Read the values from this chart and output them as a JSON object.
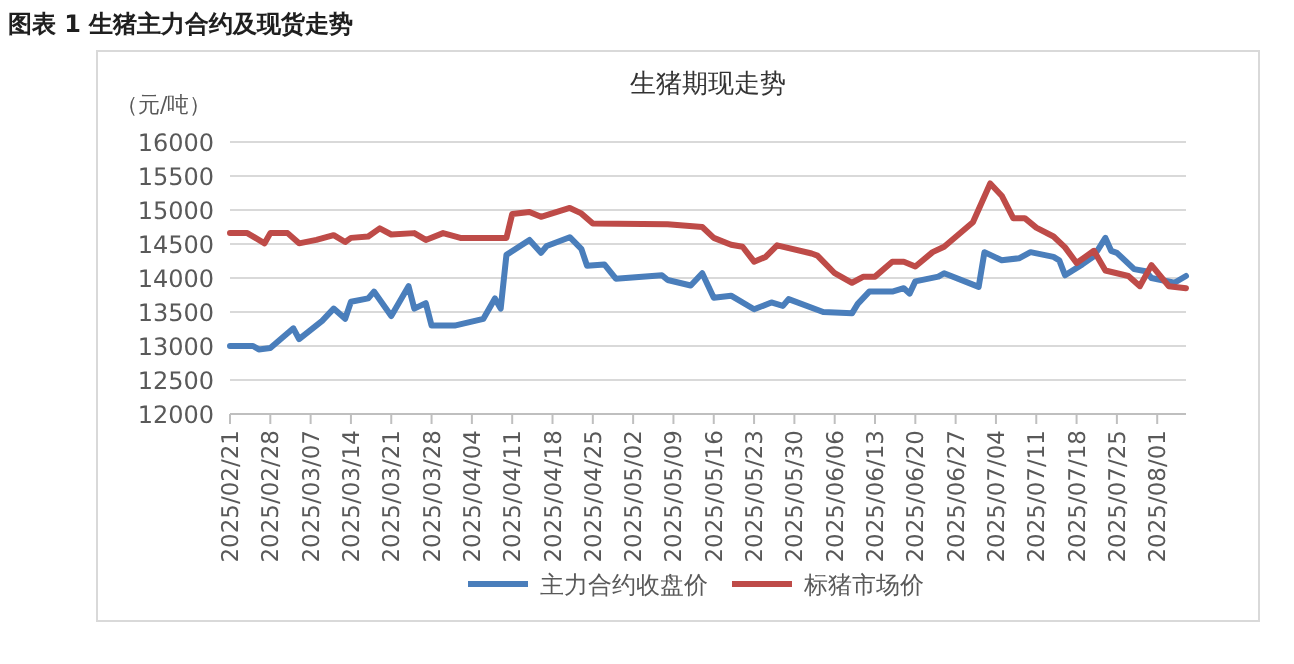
{
  "chart_data": {
    "type": "line",
    "title": "图表 1 生猪主力合约及现货走势",
    "subtitle": "生猪期现走势",
    "ylabel": "（元/吨）",
    "xlim": [
      "2025-02-21",
      "2025-08-06"
    ],
    "xticks": [
      {
        "value": "2025-02-21",
        "label": "2025/02/21"
      },
      {
        "value": "2025-02-28",
        "label": "2025/02/28"
      },
      {
        "value": "2025-03-07",
        "label": "2025/03/07"
      },
      {
        "value": "2025-03-14",
        "label": "2025/03/14"
      },
      {
        "value": "2025-03-21",
        "label": "2025/03/21"
      },
      {
        "value": "2025-03-28",
        "label": "2025/03/28"
      },
      {
        "value": "2025-04-04",
        "label": "2025/04/04"
      },
      {
        "value": "2025-04-11",
        "label": "2025/04/11"
      },
      {
        "value": "2025-04-18",
        "label": "2025/04/18"
      },
      {
        "value": "2025-04-25",
        "label": "2025/04/25"
      },
      {
        "value": "2025-05-02",
        "label": "2025/05/02"
      },
      {
        "value": "2025-05-09",
        "label": "2025/05/09"
      },
      {
        "value": "2025-05-16",
        "label": "2025/05/16"
      },
      {
        "value": "2025-05-23",
        "label": "2025/05/23"
      },
      {
        "value": "2025-05-30",
        "label": "2025/05/30"
      },
      {
        "value": "2025-06-06",
        "label": "2025/06/06"
      },
      {
        "value": "2025-06-13",
        "label": "2025/06/13"
      },
      {
        "value": "2025-06-20",
        "label": "2025/06/20"
      },
      {
        "value": "2025-06-27",
        "label": "2025/06/27"
      },
      {
        "value": "2025-07-04",
        "label": "2025/07/04"
      },
      {
        "value": "2025-07-11",
        "label": "2025/07/11"
      },
      {
        "value": "2025-07-18",
        "label": "2025/07/18"
      },
      {
        "value": "2025-07-25",
        "label": "2025/07/25"
      },
      {
        "value": "2025-08-01",
        "label": "2025/08/01"
      }
    ],
    "ylim": [
      12000,
      16000
    ],
    "yticks": [
      12000,
      12500,
      13000,
      13500,
      14000,
      14500,
      15000,
      15500,
      16000
    ],
    "grid": "y",
    "legend": "bottom",
    "marker": "none",
    "line_style": "solid",
    "series": [
      {
        "name": "主力合约收盘价",
        "color": "#4a7ebb",
        "x": [
          "2025-02-21",
          "2025-02-25",
          "2025-02-26",
          "2025-02-28",
          "2025-03-04",
          "2025-03-05",
          "2025-03-09",
          "2025-03-11",
          "2025-03-13",
          "2025-03-14",
          "2025-03-17",
          "2025-03-18",
          "2025-03-21",
          "2025-03-24",
          "2025-03-25",
          "2025-03-27",
          "2025-03-28",
          "2025-04-01",
          "2025-04-06",
          "2025-04-08",
          "2025-04-09",
          "2025-04-10",
          "2025-04-14",
          "2025-04-16",
          "2025-04-17",
          "2025-04-21",
          "2025-04-23",
          "2025-04-24",
          "2025-04-27",
          "2025-04-29",
          "2025-05-07",
          "2025-05-08",
          "2025-05-12",
          "2025-05-14",
          "2025-05-16",
          "2025-05-19",
          "2025-05-23",
          "2025-05-26",
          "2025-05-28",
          "2025-05-29",
          "2025-06-04",
          "2025-06-09",
          "2025-06-10",
          "2025-06-12",
          "2025-06-16",
          "2025-06-18",
          "2025-06-19",
          "2025-06-20",
          "2025-06-24",
          "2025-06-25",
          "2025-07-01",
          "2025-07-02",
          "2025-07-05",
          "2025-07-08",
          "2025-07-10",
          "2025-07-14",
          "2025-07-15",
          "2025-07-16",
          "2025-07-19",
          "2025-07-21",
          "2025-07-23",
          "2025-07-24",
          "2025-07-25",
          "2025-07-28",
          "2025-07-30",
          "2025-07-31",
          "2025-08-04",
          "2025-08-06"
        ],
        "values": [
          13000,
          13000,
          12950,
          12970,
          13260,
          13100,
          13370,
          13550,
          13400,
          13650,
          13700,
          13800,
          13440,
          13880,
          13550,
          13630,
          13300,
          13300,
          13400,
          13700,
          13550,
          14340,
          14560,
          14370,
          14470,
          14600,
          14430,
          14180,
          14200,
          13990,
          14040,
          13970,
          13890,
          14070,
          13710,
          13740,
          13540,
          13640,
          13590,
          13690,
          13500,
          13480,
          13620,
          13800,
          13800,
          13850,
          13770,
          13950,
          14020,
          14070,
          13870,
          14380,
          14260,
          14290,
          14380,
          14310,
          14260,
          14040,
          14200,
          14320,
          14590,
          14400,
          14370,
          14130,
          14100,
          14000,
          13930,
          14030
        ]
      },
      {
        "name": "标猪市场价",
        "color": "#be4b48",
        "x": [
          "2025-02-21",
          "2025-02-24",
          "2025-02-27",
          "2025-02-28",
          "2025-03-03",
          "2025-03-05",
          "2025-03-08",
          "2025-03-11",
          "2025-03-13",
          "2025-03-14",
          "2025-03-17",
          "2025-03-19",
          "2025-03-21",
          "2025-03-25",
          "2025-03-27",
          "2025-03-30",
          "2025-04-02",
          "2025-04-08",
          "2025-04-10",
          "2025-04-11",
          "2025-04-14",
          "2025-04-16",
          "2025-04-21",
          "2025-04-23",
          "2025-04-25",
          "2025-05-08",
          "2025-05-14",
          "2025-05-16",
          "2025-05-19",
          "2025-05-21",
          "2025-05-23",
          "2025-05-25",
          "2025-05-27",
          "2025-06-02",
          "2025-06-03",
          "2025-06-06",
          "2025-06-09",
          "2025-06-11",
          "2025-06-13",
          "2025-06-16",
          "2025-06-18",
          "2025-06-20",
          "2025-06-23",
          "2025-06-25",
          "2025-06-30",
          "2025-07-03",
          "2025-07-05",
          "2025-07-07",
          "2025-07-09",
          "2025-07-11",
          "2025-07-14",
          "2025-07-16",
          "2025-07-18",
          "2025-07-21",
          "2025-07-23",
          "2025-07-27",
          "2025-07-29",
          "2025-07-31",
          "2025-08-03",
          "2025-08-06"
        ],
        "values": [
          14660,
          14660,
          14510,
          14660,
          14660,
          14510,
          14560,
          14630,
          14530,
          14590,
          14610,
          14730,
          14640,
          14660,
          14560,
          14660,
          14590,
          14590,
          14590,
          14940,
          14970,
          14900,
          15030,
          14950,
          14800,
          14790,
          14750,
          14590,
          14490,
          14460,
          14240,
          14310,
          14480,
          14360,
          14330,
          14070,
          13930,
          14020,
          14020,
          14240,
          14240,
          14170,
          14380,
          14460,
          14820,
          15390,
          15210,
          14880,
          14880,
          14740,
          14610,
          14450,
          14220,
          14400,
          14110,
          14030,
          13880,
          14190,
          13880,
          13850
        ]
      }
    ]
  }
}
